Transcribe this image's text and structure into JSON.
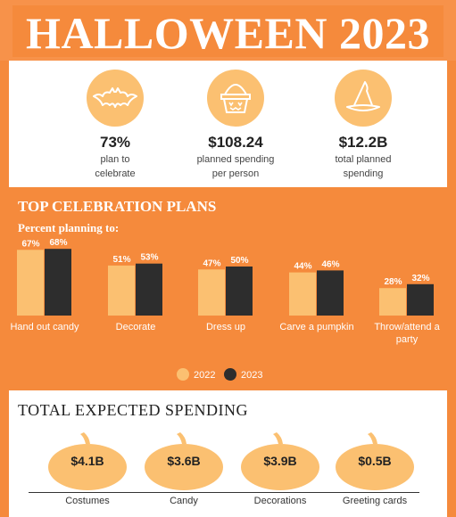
{
  "title": "HALLOWEEN 2023",
  "stats": [
    {
      "value": "73%",
      "line1": "plan to",
      "line2": "celebrate",
      "icon": "bat-icon"
    },
    {
      "value": "$108.24",
      "line1": "planned spending",
      "line2": "per person",
      "icon": "candy-basket-icon"
    },
    {
      "value": "$12.2B",
      "line1": "total planned",
      "line2": "spending",
      "icon": "witch-hat-icon"
    }
  ],
  "plans": {
    "heading": "TOP CELEBRATION PLANS",
    "subheading": "Percent planning to:"
  },
  "chart_data": {
    "type": "bar",
    "title": "TOP CELEBRATION PLANS",
    "subtitle": "Percent planning to:",
    "categories": [
      "Hand out candy",
      "Decorate",
      "Dress up",
      "Carve a pumpkin",
      "Throw/attend a party"
    ],
    "series": [
      {
        "name": "2022",
        "values": [
          67,
          51,
          47,
          44,
          28
        ],
        "labels": [
          "67%",
          "51%",
          "47%",
          "44%",
          "28%"
        ],
        "color": "#fbc071"
      },
      {
        "name": "2023",
        "values": [
          68,
          53,
          50,
          46,
          32
        ],
        "labels": [
          "68%",
          "53%",
          "50%",
          "46%",
          "32%"
        ],
        "color": "#2d2d2d"
      }
    ],
    "ylim": [
      0,
      100
    ],
    "legend": "bottom-center",
    "grid": false
  },
  "spending": {
    "heading": "TOTAL EXPECTED SPENDING",
    "items": [
      {
        "value": "$4.1B",
        "label": "Costumes"
      },
      {
        "value": "$3.6B",
        "label": "Candy"
      },
      {
        "value": "$3.9B",
        "label": "Decorations"
      },
      {
        "value": "$0.5B",
        "label": "Greeting cards"
      }
    ]
  },
  "colors": {
    "orange": "#f58a3c",
    "light_orange": "#fbc071",
    "dark": "#2d2d2d"
  }
}
